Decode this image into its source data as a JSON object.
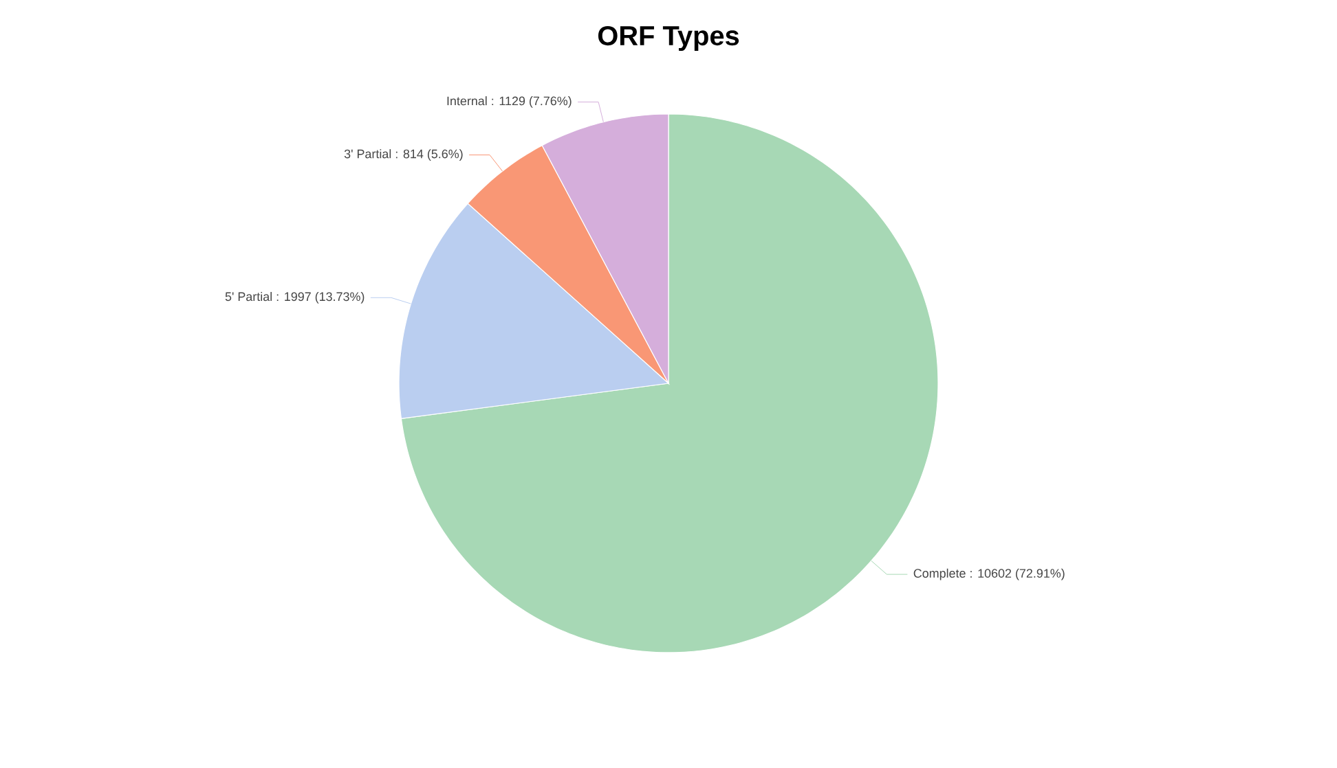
{
  "chart_data": {
    "type": "pie",
    "title": "ORF Types",
    "categories": [
      "Complete",
      "5' Partial",
      "3' Partial",
      "Internal"
    ],
    "values": [
      10602,
      1997,
      814,
      1129
    ],
    "colors": [
      "#a7d8b5",
      "#bacef0",
      "#f99775",
      "#d5aedb"
    ],
    "value_labels": [
      ": 10602 (72.91%)",
      ": 1997 (13.73%)",
      ": 814 (5.6%)",
      ": 1129 (7.76%)"
    ]
  }
}
